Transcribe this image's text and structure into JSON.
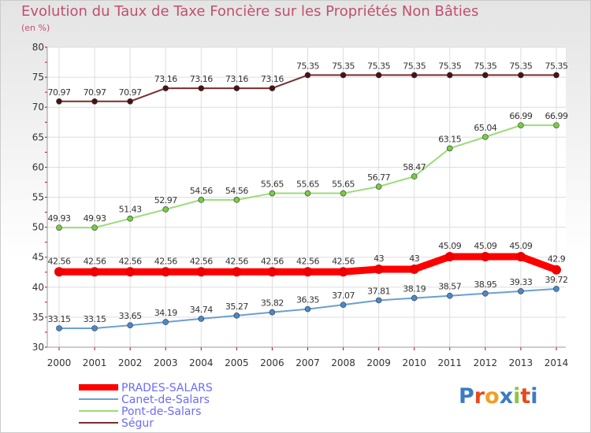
{
  "chart_data": {
    "type": "line",
    "title": "Evolution du Taux de Taxe Foncière sur les Propriétés Non Bâties",
    "ylabel": "(en %)",
    "xlabel": "",
    "ylim": [
      30,
      80
    ],
    "yticks": [
      30,
      35,
      40,
      45,
      50,
      55,
      60,
      65,
      70,
      75,
      80
    ],
    "x": [
      "2000",
      "2001",
      "2002",
      "2003",
      "2004",
      "2005",
      "2006",
      "2007",
      "2008",
      "2009",
      "2010",
      "2011",
      "2012",
      "2013",
      "2014"
    ],
    "grid": true,
    "legend_position": "bottom-left",
    "series": [
      {
        "name": "Ségur",
        "color": "#7a2e2e",
        "marker": "#4a1212",
        "values": [
          70.97,
          70.97,
          70.97,
          73.16,
          73.16,
          73.16,
          73.16,
          75.35,
          75.35,
          75.35,
          75.35,
          75.35,
          75.35,
          75.35,
          75.35
        ],
        "labels": [
          "70.97",
          "70.97",
          "70.97",
          "73.16",
          "73.16",
          "73.16",
          "73.16",
          "75.35",
          "75.35",
          "75.35",
          "75.35",
          "75.35",
          "75.35",
          "75.35",
          "75.35"
        ]
      },
      {
        "name": "Pont-de-Salars",
        "color": "#99dd77",
        "marker": "#77cc44",
        "values": [
          49.93,
          49.93,
          51.43,
          52.97,
          54.56,
          54.56,
          55.65,
          55.65,
          55.65,
          56.77,
          58.47,
          63.15,
          65.04,
          66.99,
          66.99
        ],
        "labels": [
          "49.93",
          "49.93",
          "51.43",
          "52.97",
          "54.56",
          "54.56",
          "55.65",
          "55.65",
          "55.65",
          "56.77",
          "58.47",
          "63.15",
          "65.04",
          "66.99",
          "66.99"
        ]
      },
      {
        "name": "PRADES-SALARS",
        "color": "#ff0000",
        "marker": "#ee0000",
        "values": [
          42.56,
          42.56,
          42.56,
          42.56,
          42.56,
          42.56,
          42.56,
          42.56,
          42.56,
          43,
          43,
          45.09,
          45.09,
          45.09,
          42.9
        ],
        "labels": [
          "42.56",
          "42.56",
          "42.56",
          "42.56",
          "42.56",
          "42.56",
          "42.56",
          "42.56",
          "42.56",
          "43",
          "43",
          "45.09",
          "45.09",
          "45.09",
          "42.9"
        ]
      },
      {
        "name": "Canet-de-Salars",
        "color": "#6a9fd4",
        "marker": "#4a88c8",
        "values": [
          33.15,
          33.15,
          33.65,
          34.19,
          34.74,
          35.27,
          35.82,
          36.35,
          37.07,
          37.81,
          38.19,
          38.57,
          38.95,
          39.33,
          39.72
        ],
        "labels": [
          "33.15",
          "33.15",
          "33.65",
          "34.19",
          "34.74",
          "35.27",
          "35.82",
          "36.35",
          "37.07",
          "37.81",
          "38.19",
          "38.57",
          "38.95",
          "39.33",
          "39.72"
        ]
      }
    ],
    "legend": [
      "PRADES-SALARS",
      "Canet-de-Salars",
      "Pont-de-Salars",
      "Ségur"
    ]
  },
  "logo": {
    "text": "Proxiti",
    "letters": [
      "P",
      "r",
      "o",
      "x",
      "i",
      "t",
      "i"
    ],
    "colors": [
      "#3a7cc4",
      "#e84a1a",
      "#f0a020",
      "#3a7cc4",
      "#8cc63f",
      "#e84a1a",
      "#3a7cc4"
    ]
  }
}
